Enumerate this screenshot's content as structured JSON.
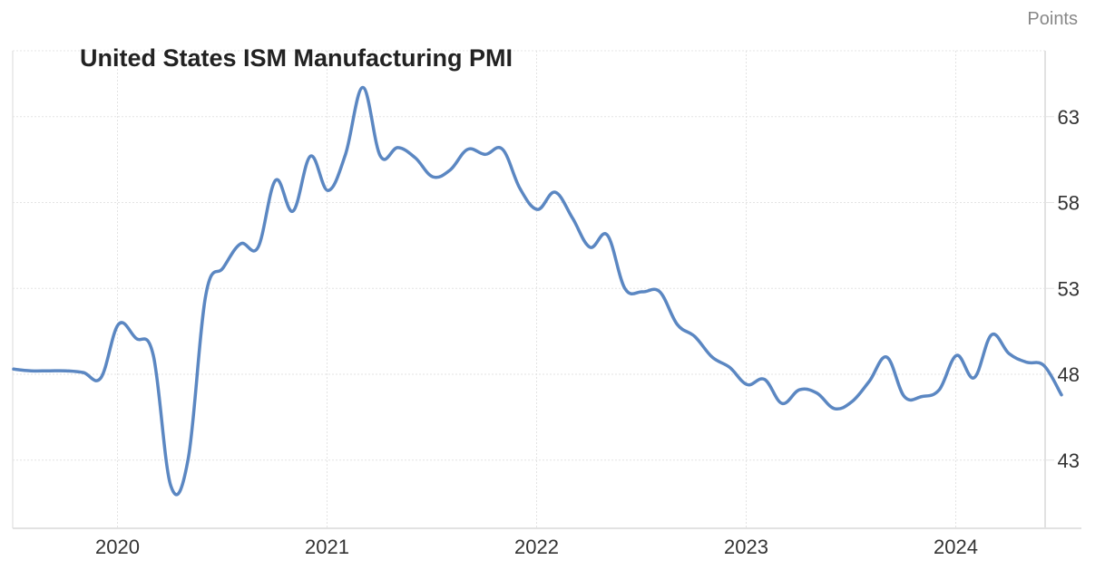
{
  "chart_data": {
    "type": "line",
    "title": "United States ISM Manufacturing PMI",
    "unit_label": "Points",
    "xlabel": "",
    "ylabel": "Points",
    "x_tick_labels": [
      "2020",
      "2021",
      "2022",
      "2023",
      "2024"
    ],
    "y_tick_labels": [
      "63",
      "58",
      "53",
      "48",
      "43"
    ],
    "y_ticks": [
      63,
      58,
      53,
      48,
      43
    ],
    "ylim": [
      39.5,
      67
    ],
    "grid": true,
    "line_color": "#5b87c2",
    "series": [
      {
        "name": "United States ISM Manufacturing PMI",
        "x": [
          "2019-07",
          "2019-08",
          "2019-09",
          "2019-10",
          "2019-11",
          "2019-12",
          "2020-01",
          "2020-02",
          "2020-03",
          "2020-04",
          "2020-05",
          "2020-06",
          "2020-07",
          "2020-08",
          "2020-09",
          "2020-10",
          "2020-11",
          "2020-12",
          "2021-01",
          "2021-02",
          "2021-03",
          "2021-04",
          "2021-05",
          "2021-06",
          "2021-07",
          "2021-08",
          "2021-09",
          "2021-10",
          "2021-11",
          "2021-12",
          "2022-01",
          "2022-02",
          "2022-03",
          "2022-04",
          "2022-05",
          "2022-06",
          "2022-07",
          "2022-08",
          "2022-09",
          "2022-10",
          "2022-11",
          "2022-12",
          "2023-01",
          "2023-02",
          "2023-03",
          "2023-04",
          "2023-05",
          "2023-06",
          "2023-07",
          "2023-08",
          "2023-09",
          "2023-10",
          "2023-11",
          "2023-12",
          "2024-01",
          "2024-02",
          "2024-03",
          "2024-04",
          "2024-05",
          "2024-06",
          "2024-07"
        ],
        "values": [
          48.3,
          48.2,
          48.2,
          48.2,
          48.1,
          47.8,
          50.9,
          50.1,
          49.1,
          41.5,
          43.1,
          52.6,
          54.2,
          55.6,
          55.4,
          59.3,
          57.5,
          60.7,
          58.7,
          60.8,
          64.7,
          60.7,
          61.2,
          60.6,
          59.5,
          59.9,
          61.1,
          60.8,
          61.1,
          58.8,
          57.6,
          58.6,
          57.1,
          55.4,
          56.1,
          53.0,
          52.8,
          52.8,
          50.9,
          50.2,
          49.0,
          48.4,
          47.4,
          47.7,
          46.3,
          47.1,
          46.9,
          46.0,
          46.4,
          47.6,
          49.0,
          46.7,
          46.7,
          47.1,
          49.1,
          47.8,
          50.3,
          49.2,
          48.7,
          48.5,
          46.8
        ]
      }
    ]
  }
}
